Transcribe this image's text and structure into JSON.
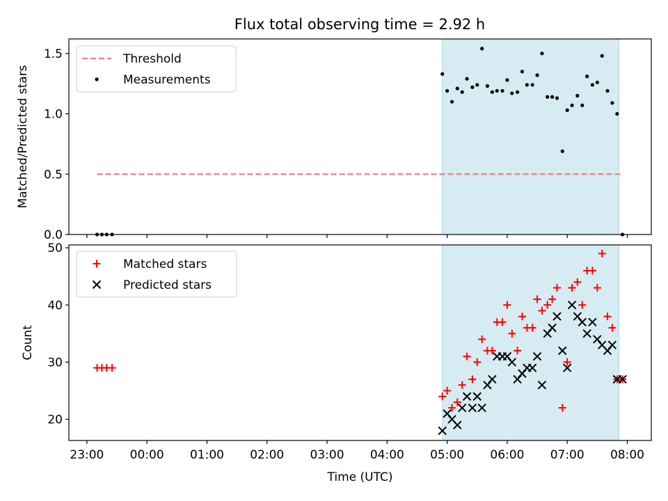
{
  "title": "Flux total observing time = 2.92 h",
  "colors": {
    "threshold": "#f08080",
    "measurements": "#000000",
    "matched": "#ff0000",
    "predicted": "#000000",
    "span": "#add8e6"
  },
  "chart_data": [
    {
      "type": "scatter",
      "ylabel": "Matched/Predicted stars",
      "xlim_hours": [
        22.7,
        32.4
      ],
      "ylim": [
        0,
        1.62
      ],
      "yticks": [
        "0.0",
        "0.5",
        "1.0",
        "1.5"
      ],
      "ytick_values": [
        0,
        0.5,
        1.0,
        1.5
      ],
      "span_hours": [
        28.92,
        31.86
      ],
      "legend": {
        "placement": "upper-left",
        "entries": [
          "Threshold",
          "Measurements"
        ]
      },
      "threshold": {
        "name": "Threshold",
        "y": 0.5,
        "x_hours": [
          23.17,
          31.9
        ]
      },
      "series": [
        {
          "name": "Measurements",
          "x_hours": [
            23.17,
            23.25,
            23.33,
            23.42,
            28.92,
            29.0,
            29.08,
            29.17,
            29.25,
            29.33,
            29.42,
            29.5,
            29.58,
            29.67,
            29.75,
            29.83,
            29.92,
            30.0,
            30.08,
            30.17,
            30.25,
            30.33,
            30.42,
            30.5,
            30.58,
            30.67,
            30.75,
            30.83,
            30.92,
            31.0,
            31.08,
            31.17,
            31.25,
            31.33,
            31.42,
            31.5,
            31.58,
            31.67,
            31.75,
            31.83,
            31.92
          ],
          "y": [
            0.0,
            0.0,
            0.0,
            0.0,
            1.33,
            1.19,
            1.1,
            1.21,
            1.18,
            1.29,
            1.22,
            1.24,
            1.54,
            1.23,
            1.18,
            1.19,
            1.19,
            1.28,
            1.17,
            1.18,
            1.35,
            1.24,
            1.24,
            1.32,
            1.5,
            1.14,
            1.14,
            1.13,
            0.69,
            1.03,
            1.07,
            1.15,
            1.07,
            1.31,
            1.24,
            1.26,
            1.48,
            1.19,
            1.09,
            1.0,
            0.0
          ]
        }
      ]
    },
    {
      "type": "scatter",
      "xlabel": "Time (UTC)",
      "ylabel": "Count",
      "xlim_hours": [
        22.7,
        32.4
      ],
      "ylim": [
        16.3,
        50.5
      ],
      "yticks": [
        "20",
        "30",
        "40",
        "50"
      ],
      "ytick_values": [
        20,
        30,
        40,
        50
      ],
      "xticks": [
        "23:00",
        "00:00",
        "01:00",
        "02:00",
        "03:00",
        "04:00",
        "05:00",
        "06:00",
        "07:00",
        "08:00"
      ],
      "xtick_hours": [
        23,
        24,
        25,
        26,
        27,
        28,
        29,
        30,
        31,
        32
      ],
      "span_hours": [
        28.92,
        31.86
      ],
      "legend": {
        "placement": "upper-left",
        "entries": [
          "Matched stars",
          "Predicted stars"
        ]
      },
      "series": [
        {
          "name": "Matched stars",
          "x_hours": [
            23.17,
            23.25,
            23.33,
            23.42,
            28.92,
            29.0,
            29.08,
            29.17,
            29.25,
            29.33,
            29.42,
            29.5,
            29.58,
            29.67,
            29.75,
            29.83,
            29.92,
            30.0,
            30.08,
            30.17,
            30.25,
            30.33,
            30.42,
            30.5,
            30.58,
            30.67,
            30.75,
            30.83,
            30.92,
            31.0,
            31.08,
            31.17,
            31.25,
            31.33,
            31.42,
            31.5,
            31.58,
            31.67,
            31.75,
            31.83,
            31.92
          ],
          "y": [
            29,
            29,
            29,
            29,
            24,
            25,
            22,
            23,
            26,
            31,
            27,
            30,
            34,
            32,
            32,
            37,
            37,
            40,
            35,
            32,
            38,
            36,
            36,
            41,
            39,
            40,
            41,
            43,
            22,
            30,
            43,
            44,
            40,
            46,
            46,
            43,
            49,
            38,
            36,
            27,
            27
          ]
        },
        {
          "name": "Predicted stars",
          "x_hours": [
            28.92,
            29.0,
            29.08,
            29.17,
            29.25,
            29.33,
            29.42,
            29.5,
            29.58,
            29.67,
            29.75,
            29.83,
            29.92,
            30.0,
            30.08,
            30.17,
            30.25,
            30.33,
            30.42,
            30.5,
            30.58,
            30.67,
            30.75,
            30.83,
            30.92,
            31.0,
            31.08,
            31.17,
            31.25,
            31.33,
            31.42,
            31.5,
            31.58,
            31.67,
            31.75,
            31.83,
            31.92
          ],
          "y": [
            18,
            21,
            20,
            19,
            22,
            24,
            22,
            24,
            22,
            26,
            27,
            31,
            31,
            31,
            30,
            27,
            28,
            29,
            29,
            31,
            26,
            35,
            36,
            38,
            32,
            29,
            40,
            38,
            37,
            35,
            37,
            34,
            33,
            32,
            33,
            27,
            27
          ]
        }
      ]
    }
  ]
}
